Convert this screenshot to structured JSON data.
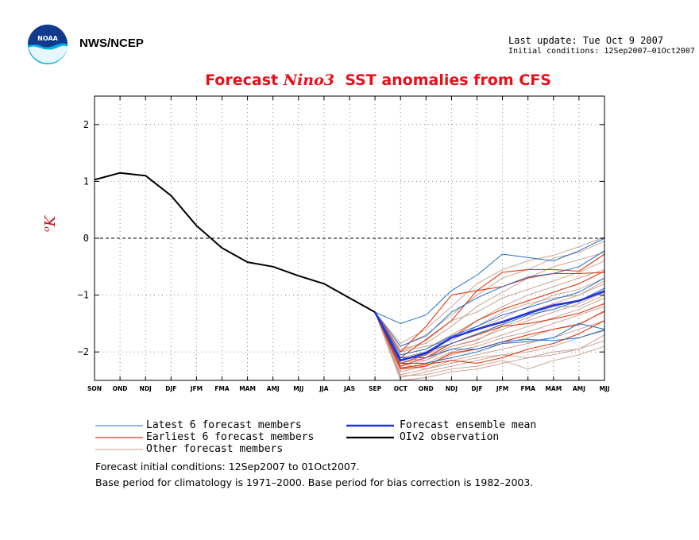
{
  "header": {
    "org": "NWS/NCEP",
    "last_update": "Last update: Tue Oct 9 2007",
    "initial_conditions": "Initial conditions: 12Sep2007–01Oct2007"
  },
  "logo": {
    "text": "NOAA"
  },
  "chart_data": {
    "type": "line",
    "title_parts": [
      "Forecast ",
      "Nino3",
      "  SST anomalies from CFS"
    ],
    "ylabel": "K",
    "ylabel_sup": "o",
    "ylim": [
      -2.5,
      2.5
    ],
    "yticks": [
      -2,
      -1,
      0,
      1,
      2
    ],
    "ytick_labels": [
      "−2",
      "−1",
      "0",
      "1",
      "2"
    ],
    "categories": [
      "SON",
      "OND",
      "NDJ",
      "DJF",
      "JFM",
      "FMA",
      "MAM",
      "AMJ",
      "MJJ",
      "JJA",
      "JAS",
      "SEP",
      "OCT",
      "OND",
      "NDJ",
      "DJF",
      "JFM",
      "FMA",
      "MAM",
      "AMJ",
      "MJJ"
    ],
    "grid": true,
    "zero_line": true,
    "observation": {
      "name": "OIv2 observation",
      "color": "#000000",
      "values": [
        1.03,
        1.15,
        1.1,
        0.75,
        0.22,
        -0.17,
        -0.42,
        -0.5,
        -0.66,
        -0.8,
        -1.05,
        -1.3
      ]
    },
    "ensemble_mean": {
      "name": "Forecast ensemble mean",
      "color": "#2233dd",
      "values": [
        -1.3,
        -2.15,
        -2.02,
        -1.75,
        -1.6,
        -1.47,
        -1.32,
        -1.18,
        -1.1,
        -0.93
      ]
    },
    "latest_members": {
      "name": "Latest 6 forecast members",
      "color": "#1f6fc8",
      "series": [
        [
          -1.3,
          -1.5,
          -1.35,
          -0.92,
          -0.65,
          -0.28,
          -0.34,
          -0.4,
          -0.22,
          0.0
        ],
        [
          -1.3,
          -1.9,
          -1.72,
          -1.3,
          -1.05,
          -0.85,
          -0.68,
          -0.62,
          -0.5,
          -0.22
        ],
        [
          -1.3,
          -2.05,
          -1.95,
          -1.72,
          -1.55,
          -1.35,
          -1.22,
          -1.08,
          -0.95,
          -0.7
        ],
        [
          -1.3,
          -2.15,
          -2.0,
          -1.85,
          -1.68,
          -1.52,
          -1.35,
          -1.25,
          -1.1,
          -0.88
        ],
        [
          -1.3,
          -2.2,
          -2.2,
          -2.1,
          -2.0,
          -1.85,
          -1.82,
          -1.75,
          -1.5,
          -1.6
        ],
        [
          -1.3,
          -2.1,
          -2.1,
          -1.95,
          -1.95,
          -1.82,
          -1.78,
          -1.8,
          -1.75,
          -1.62
        ]
      ]
    },
    "earliest_members": {
      "name": "Earliest 6 forecast members",
      "color": "#e03a10",
      "series": [
        [
          -1.3,
          -2.0,
          -1.55,
          -1.0,
          -0.92,
          -0.6,
          -0.55,
          -0.55,
          -0.58,
          -0.28
        ],
        [
          -1.3,
          -2.1,
          -1.78,
          -1.45,
          -0.92,
          -0.85,
          -0.7,
          -0.62,
          -0.62,
          -0.6
        ],
        [
          -1.3,
          -2.2,
          -2.05,
          -1.75,
          -1.45,
          -1.25,
          -1.1,
          -0.95,
          -0.8,
          -0.58
        ],
        [
          -1.3,
          -2.25,
          -2.1,
          -1.85,
          -1.7,
          -1.55,
          -1.5,
          -1.42,
          -1.32,
          -1.15
        ],
        [
          -1.3,
          -2.3,
          -2.25,
          -2.02,
          -1.95,
          -1.82,
          -1.7,
          -1.6,
          -1.52,
          -1.28
        ],
        [
          -1.3,
          -2.28,
          -2.22,
          -2.15,
          -2.2,
          -2.1,
          -1.95,
          -1.85,
          -1.68,
          -1.45
        ]
      ]
    },
    "other_members": {
      "name": "Other forecast members",
      "color": "#c99a8a",
      "series": [
        [
          -1.3,
          -1.85,
          -1.6,
          -1.2,
          -0.8,
          -0.55,
          -0.4,
          -0.3,
          -0.15,
          0.02
        ],
        [
          -1.3,
          -1.9,
          -1.7,
          -1.35,
          -1.0,
          -0.7,
          -0.55,
          -0.35,
          -0.25,
          -0.05
        ],
        [
          -1.3,
          -1.95,
          -1.85,
          -1.55,
          -1.2,
          -0.95,
          -0.7,
          -0.5,
          -0.38,
          -0.25
        ],
        [
          -1.3,
          -2.0,
          -1.8,
          -1.45,
          -1.3,
          -1.05,
          -0.9,
          -0.75,
          -0.6,
          -0.4
        ],
        [
          -1.3,
          -2.05,
          -1.95,
          -1.7,
          -1.45,
          -1.2,
          -1.0,
          -0.85,
          -0.7,
          -0.55
        ],
        [
          -1.3,
          -2.1,
          -2.0,
          -1.75,
          -1.6,
          -1.4,
          -1.2,
          -1.0,
          -0.9,
          -0.7
        ],
        [
          -1.3,
          -2.15,
          -2.05,
          -1.85,
          -1.7,
          -1.5,
          -1.3,
          -1.15,
          -1.0,
          -0.8
        ],
        [
          -1.3,
          -2.2,
          -2.1,
          -1.9,
          -1.78,
          -1.6,
          -1.45,
          -1.3,
          -1.15,
          -0.95
        ],
        [
          -1.3,
          -2.25,
          -2.15,
          -1.95,
          -1.85,
          -1.7,
          -1.55,
          -1.4,
          -1.25,
          -1.05
        ],
        [
          -1.3,
          -2.3,
          -2.2,
          -2.0,
          -1.9,
          -1.75,
          -1.65,
          -1.5,
          -1.35,
          -1.2
        ],
        [
          -1.3,
          -2.35,
          -2.25,
          -2.05,
          -1.95,
          -1.85,
          -1.75,
          -1.6,
          -1.5,
          -1.3
        ],
        [
          -1.3,
          -2.4,
          -2.3,
          -2.15,
          -2.05,
          -1.95,
          -1.85,
          -1.75,
          -1.6,
          -1.45
        ],
        [
          -1.3,
          -2.45,
          -2.35,
          -2.25,
          -2.15,
          -2.05,
          -2.0,
          -1.9,
          -1.75,
          -1.6
        ],
        [
          -1.3,
          -2.5,
          -2.45,
          -2.35,
          -2.3,
          -2.2,
          -2.1,
          -2.05,
          -1.95,
          -1.8
        ],
        [
          -1.3,
          -2.42,
          -2.4,
          -2.3,
          -2.25,
          -2.15,
          -2.3,
          -2.15,
          -2.05,
          -1.9
        ],
        [
          -1.3,
          -2.2,
          -2.3,
          -2.2,
          -2.1,
          -2.05,
          -2.1,
          -2.0,
          -1.95,
          -1.7
        ],
        [
          -1.3,
          -2.0,
          -1.9,
          -1.8,
          -1.55,
          -1.3,
          -1.15,
          -1.05,
          -1.0,
          -0.75
        ],
        [
          -1.3,
          -2.1,
          -2.15,
          -1.9,
          -1.8,
          -1.55,
          -1.4,
          -1.2,
          -1.2,
          -1.0
        ]
      ]
    }
  },
  "notes": [
    "Forecast initial conditions: 12Sep2007 to 01Oct2007.",
    "Base period for climatology is 1971–2000. Base period for bias correction is 1982–2003."
  ]
}
